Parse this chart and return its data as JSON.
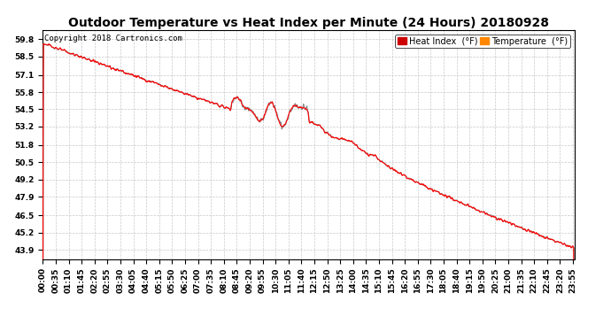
{
  "title": "Outdoor Temperature vs Heat Index per Minute (24 Hours) 20180928",
  "copyright": "Copyright 2018 Cartronics.com",
  "ylabel_ticks": [
    43.9,
    45.2,
    46.5,
    47.9,
    49.2,
    50.5,
    51.8,
    53.2,
    54.5,
    55.8,
    57.1,
    58.5,
    59.8
  ],
  "ymin": 43.2,
  "ymax": 60.5,
  "x_tick_interval": 35,
  "heat_index_color": "#FF0000",
  "temperature_color": "#888888",
  "background_color": "#FFFFFF",
  "grid_color": "#BBBBBB",
  "title_fontsize": 10,
  "tick_fontsize": 6.5,
  "legend_fontsize": 7,
  "copyright_fontsize": 6.5
}
